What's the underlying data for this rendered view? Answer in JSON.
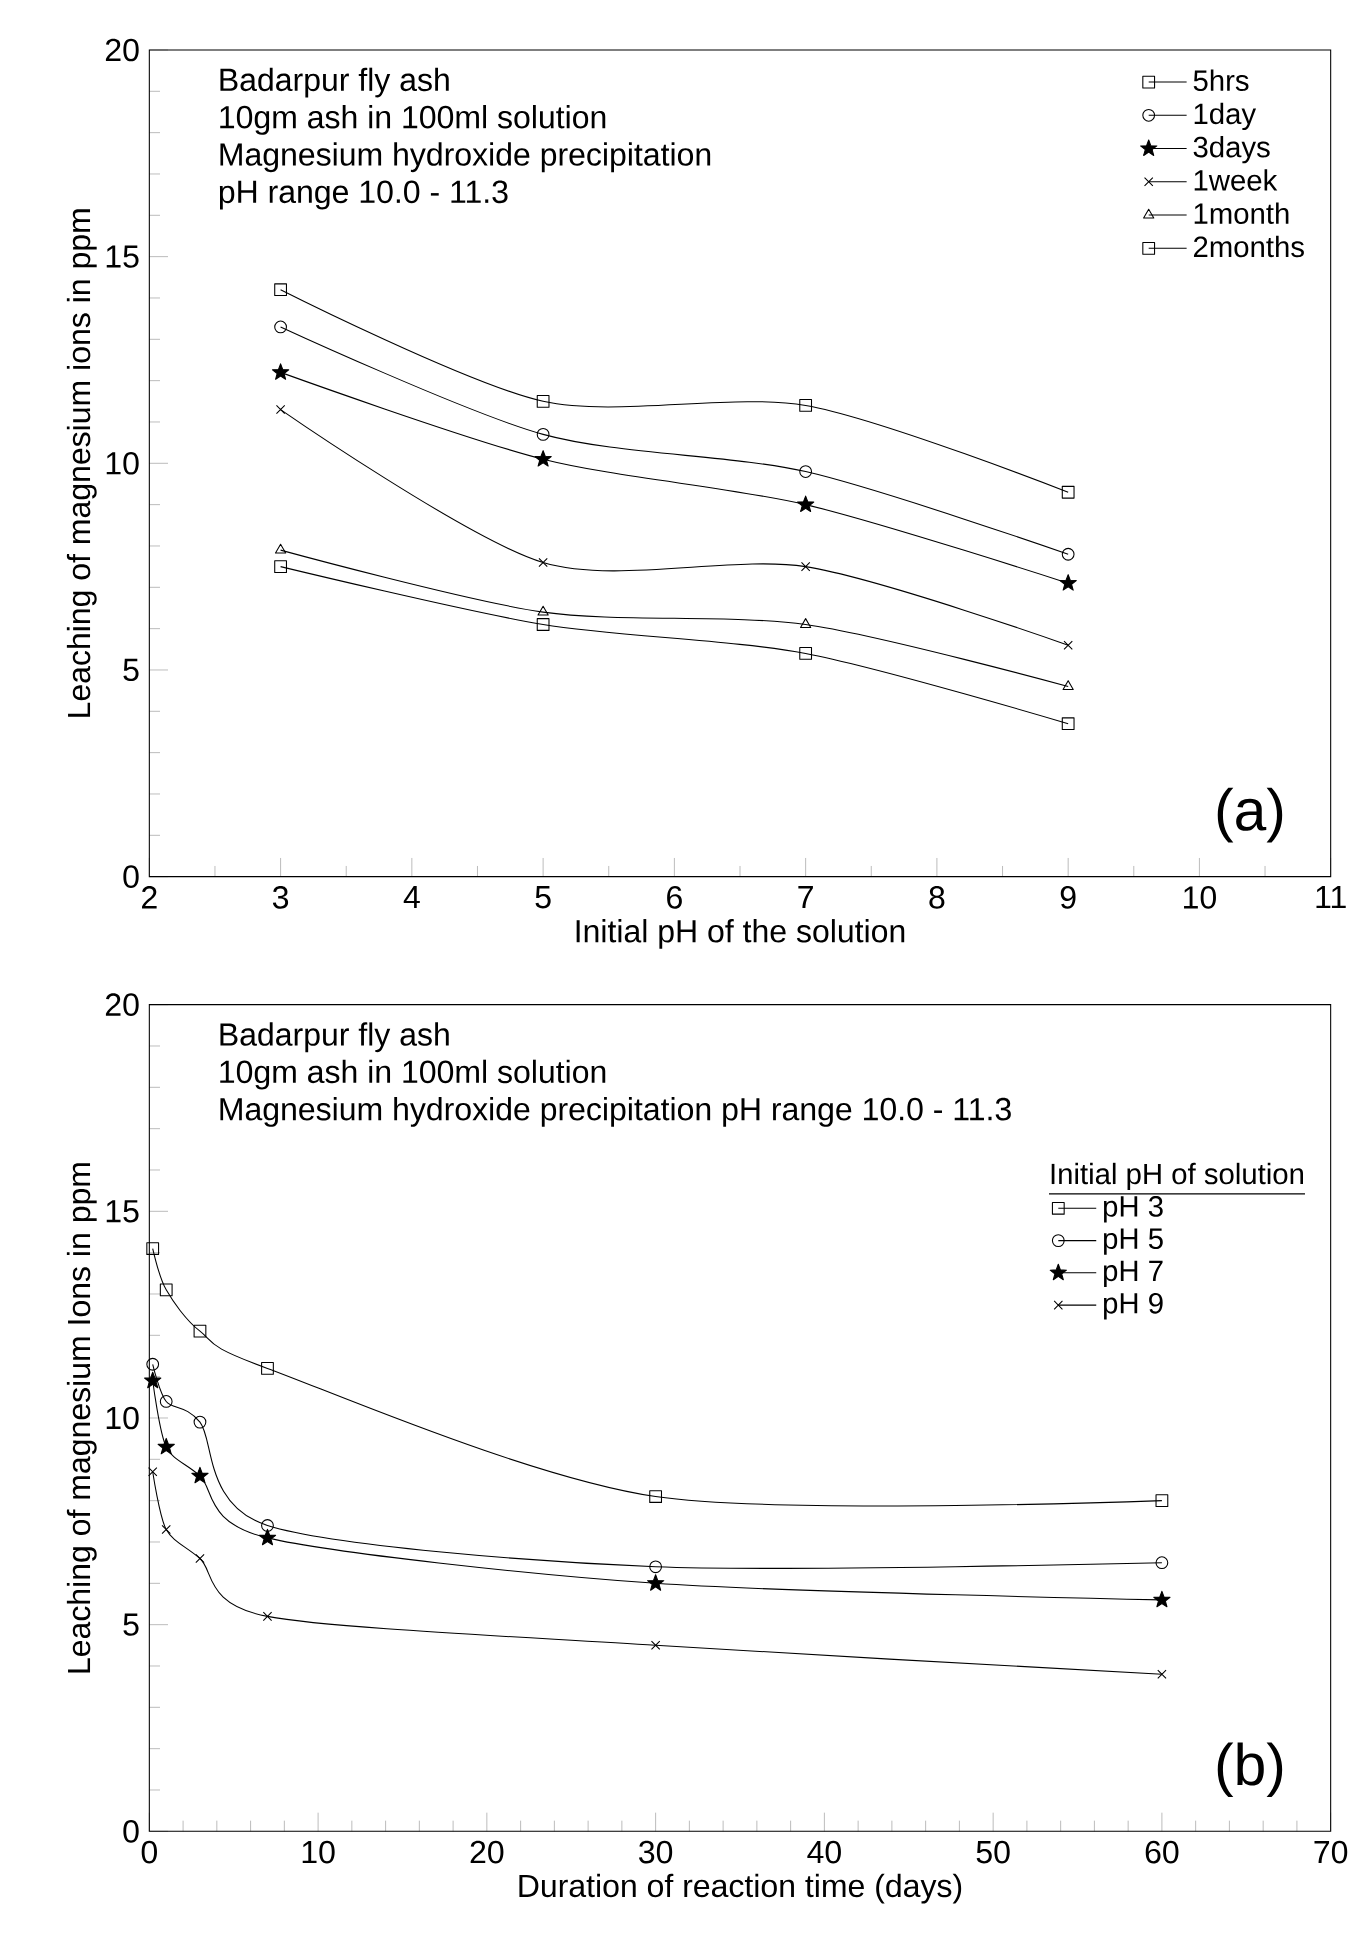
{
  "chart_data": [
    {
      "type": "line",
      "xlabel": "Initial pH of the solution",
      "ylabel": "Leaching of magnesium ions in ppm",
      "annotations": [
        "Badarpur fly ash",
        "10gm ash in 100ml solution",
        "Magnesium hydroxide precipitation",
        "pH range 10.0 - 11.3",
        "(a)"
      ],
      "x": [
        3,
        5,
        7,
        9
      ],
      "xlim": [
        2,
        11
      ],
      "xticks": [
        2,
        3,
        4,
        5,
        6,
        7,
        8,
        9,
        10,
        11
      ],
      "ylim": [
        0,
        20
      ],
      "yticks": [
        0,
        5,
        10,
        15,
        20
      ],
      "legend": "top right",
      "grid": false,
      "line_style": "solid",
      "series": [
        {
          "name": "5hrs",
          "color": "#000000",
          "marker": "square",
          "values": [
            14.2,
            11.5,
            11.4,
            9.3
          ]
        },
        {
          "name": "1day",
          "color": "#000000",
          "marker": "circle",
          "values": [
            13.3,
            10.7,
            9.8,
            7.8
          ]
        },
        {
          "name": "3days",
          "color": "#000000",
          "marker": "star",
          "values": [
            12.2,
            10.1,
            9.0,
            7.1
          ]
        },
        {
          "name": "1week",
          "color": "#000000",
          "marker": "cross",
          "values": [
            11.3,
            7.6,
            7.5,
            5.6
          ]
        },
        {
          "name": "1month",
          "color": "#000000",
          "marker": "triangle",
          "values": [
            7.9,
            6.4,
            6.1,
            4.6
          ]
        },
        {
          "name": "2months",
          "color": "#000000",
          "marker": "square",
          "values": [
            7.5,
            6.1,
            5.4,
            3.7
          ]
        }
      ]
    },
    {
      "type": "line",
      "xlabel": "Duration of reaction time (days)",
      "ylabel": "Leaching of magnesium Ions in ppm",
      "legend_title": "Initial pH of solution",
      "annotations": [
        "Badarpur fly ash",
        "10gm ash in 100ml solution",
        "Magnesium hydroxide precipitation pH range 10.0 - 11.3",
        "(b)"
      ],
      "x": [
        0.2,
        1,
        3,
        7,
        30,
        60
      ],
      "xlim": [
        0,
        70
      ],
      "xticks": [
        0,
        10,
        20,
        30,
        40,
        50,
        60,
        70
      ],
      "ylim": [
        0,
        20
      ],
      "yticks": [
        0,
        5,
        10,
        15,
        20
      ],
      "legend": "top right",
      "grid": false,
      "line_style": "solid",
      "series": [
        {
          "name": "pH 3",
          "color": "#000000",
          "marker": "square",
          "values": [
            14.1,
            13.1,
            12.1,
            11.2,
            8.1,
            8.0
          ]
        },
        {
          "name": "pH 5",
          "color": "#000000",
          "marker": "circle",
          "values": [
            11.3,
            10.4,
            9.9,
            7.4,
            6.4,
            6.5
          ]
        },
        {
          "name": "pH 7",
          "color": "#000000",
          "marker": "star",
          "values": [
            10.9,
            9.3,
            8.6,
            7.1,
            6.0,
            5.6
          ]
        },
        {
          "name": "pH 9",
          "color": "#000000",
          "marker": "cross",
          "values": [
            8.7,
            7.3,
            6.6,
            5.2,
            4.5,
            3.8
          ]
        }
      ]
    }
  ]
}
